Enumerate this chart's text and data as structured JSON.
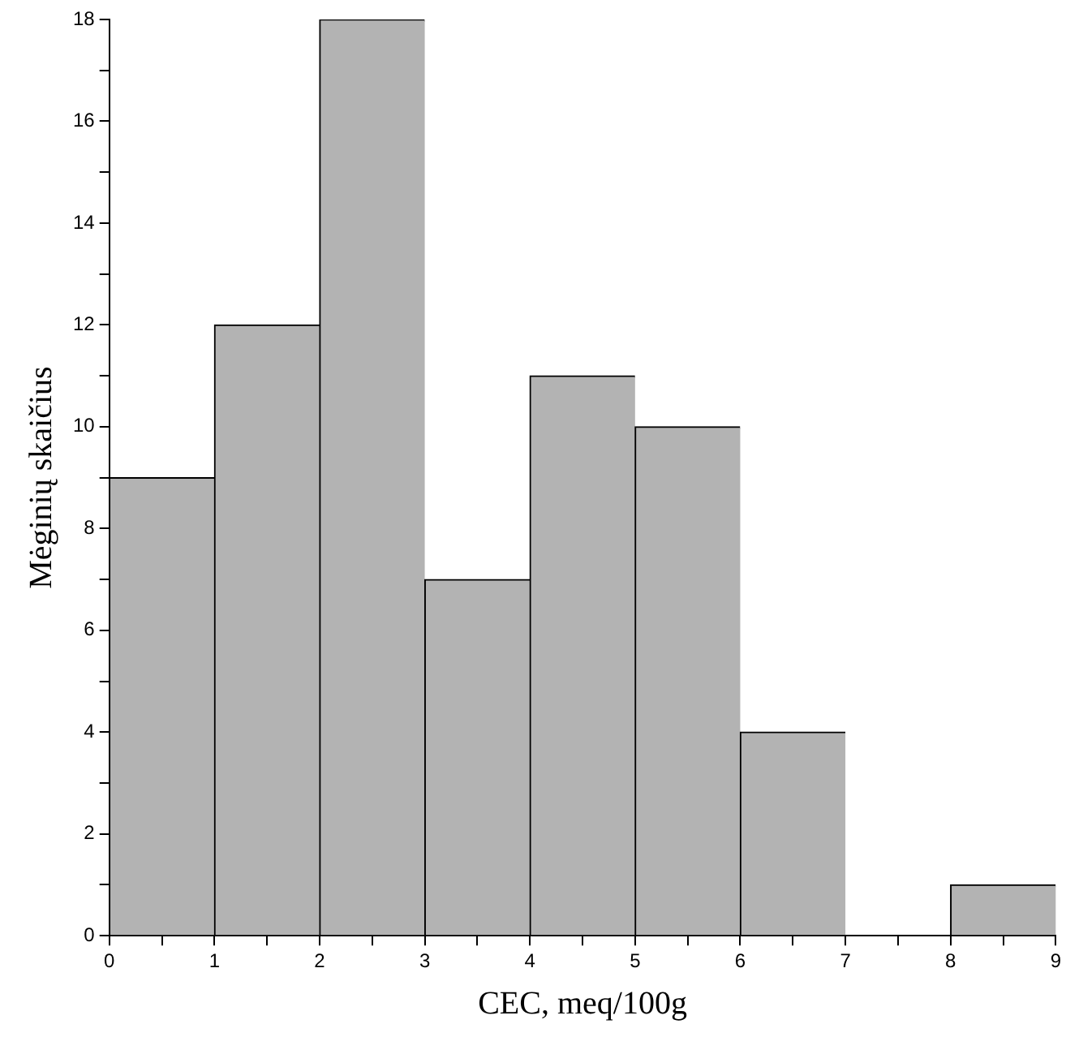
{
  "chart_data": {
    "type": "histogram",
    "xlabel": "CEC, meq/100g",
    "ylabel": "Mėginių skaičius",
    "bins": [
      0,
      1,
      2,
      3,
      4,
      5,
      6,
      7,
      8,
      9
    ],
    "values": [
      9,
      12,
      18,
      7,
      11,
      10,
      4,
      0,
      1
    ],
    "color": "#b3b3b3",
    "xlim": [
      0,
      9
    ],
    "xticks": [
      0,
      {
        "value": 0.5,
        "label": null
      },
      1,
      {
        "value": 1.5,
        "label": null
      },
      2,
      {
        "value": 2.5,
        "label": null
      },
      3,
      {
        "value": 3.5,
        "label": null
      },
      4,
      {
        "value": 4.5,
        "label": null
      },
      5,
      {
        "value": 5.5,
        "label": null
      },
      6,
      {
        "value": 6.5,
        "label": null
      },
      7,
      {
        "value": 7.5,
        "label": null
      },
      8,
      {
        "value": 8.5,
        "label": null
      },
      9
    ],
    "ylim": [
      0,
      18
    ],
    "yticks": [
      0,
      {
        "value": 1,
        "label": null
      },
      2,
      {
        "value": 3,
        "label": null
      },
      4,
      {
        "value": 5,
        "label": null
      },
      6,
      {
        "value": 7,
        "label": null
      },
      8,
      {
        "value": 9,
        "label": null
      },
      10,
      {
        "value": 11,
        "label": null
      },
      12,
      {
        "value": 13,
        "label": null
      },
      14,
      {
        "value": 15,
        "label": null
      },
      16,
      {
        "value": 17,
        "label": null
      },
      18
    ],
    "grid": false
  }
}
